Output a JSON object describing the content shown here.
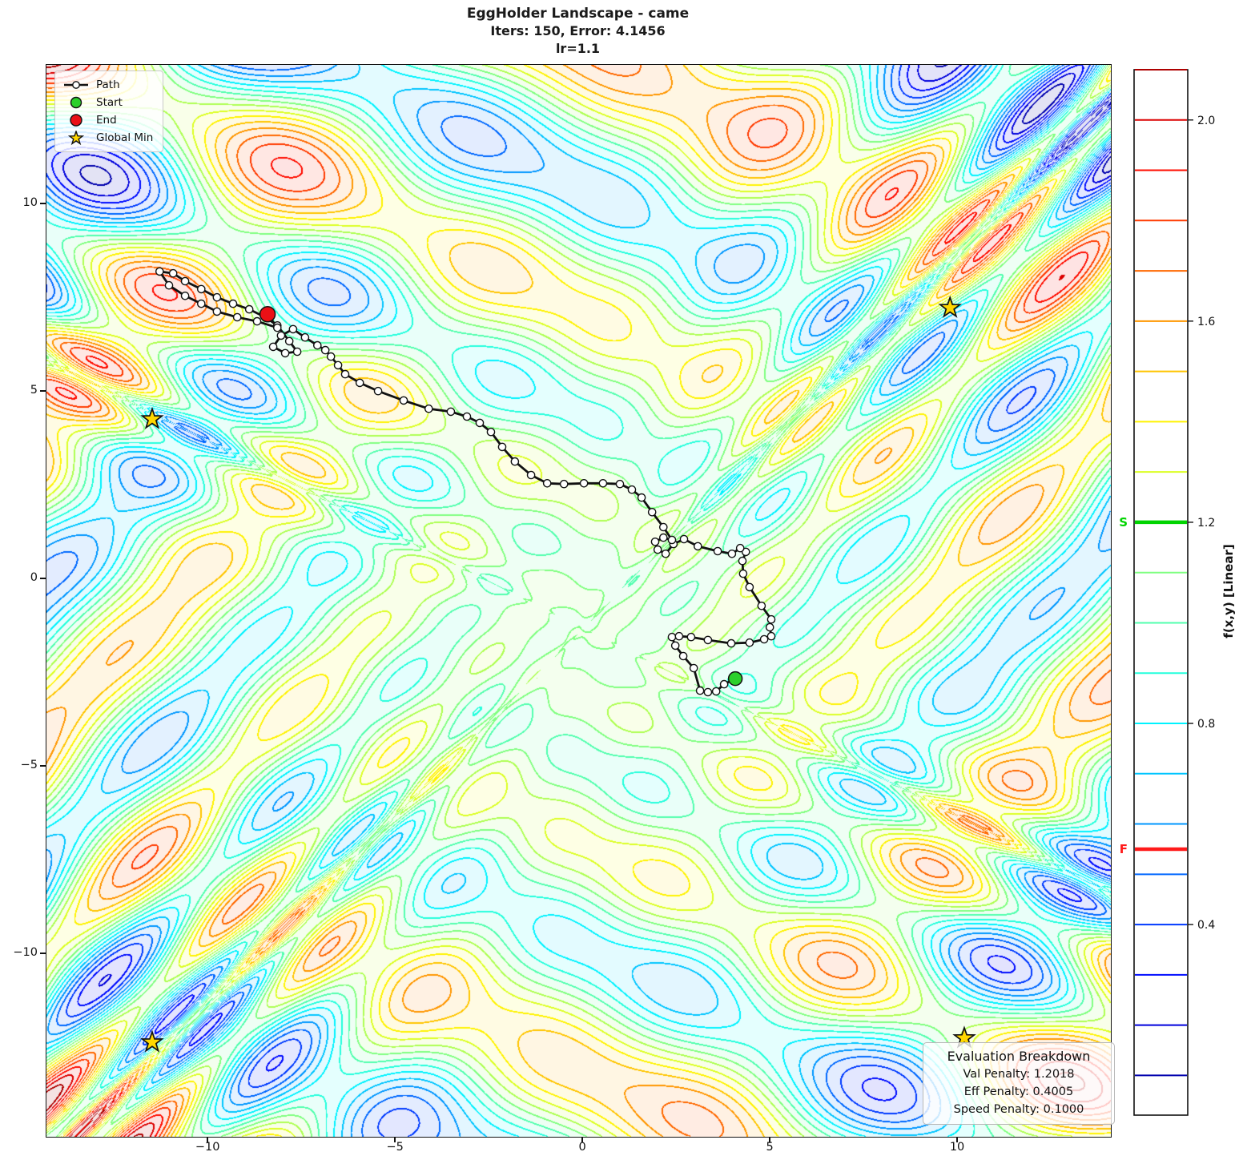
{
  "title": {
    "line1": "EggHolder Landscape - came",
    "line2": "Iters: 150, Error: 4.1456",
    "line3": "lr=1.1"
  },
  "legend": {
    "items": [
      "Path",
      "Start",
      "End",
      "Global Min"
    ]
  },
  "evaluation": {
    "title": "Evaluation Breakdown",
    "lines": [
      "Val Penalty: 1.2018",
      "Eff Penalty: 0.4005",
      "Speed Penalty: 0.1000"
    ]
  },
  "colors": {
    "start": "#2bd02b",
    "end": "#ea1016",
    "star": "#ffd700",
    "path": "#111111",
    "cbar_start_line": "#00d400",
    "cbar_end_line": "#ff1a1a"
  },
  "colorbar": {
    "label": "f(x,y) [Linear]",
    "ticks": [
      2.0,
      1.6,
      1.2,
      0.8,
      0.4
    ],
    "value_min": 0.021,
    "value_max": 2.1,
    "level_min": 0.1,
    "level_max": 2.1,
    "level_step": 0.1,
    "start_marker": {
      "label": "S",
      "value": 1.2
    },
    "end_marker": {
      "label": "F",
      "value": 0.55
    }
  },
  "chart_data": {
    "type": "contour",
    "function": "EggHolder (scaled)",
    "colormap": "jet",
    "n_levels": 21,
    "xlim": [
      -14.32,
      14.08
    ],
    "ylim": [
      -14.87,
      13.72
    ],
    "xticks": [
      -10,
      -5,
      0,
      5,
      10
    ],
    "xtick_labels": [
      "−10",
      "−5",
      "0",
      "5",
      "10"
    ],
    "yticks": [
      10,
      5,
      0,
      -5,
      -10
    ],
    "ytick_labels": [
      "10",
      "5",
      "0",
      "−5",
      "−10"
    ],
    "start": [
      4.06,
      -2.65
    ],
    "end": [
      -8.42,
      7.07
    ],
    "global_minima": [
      [
        -11.5,
        4.27
      ],
      [
        9.79,
        7.24
      ],
      [
        -11.5,
        -12.35
      ],
      [
        10.17,
        -12.24
      ]
    ],
    "path": [
      [
        4.06,
        -2.65
      ],
      [
        3.76,
        -2.8
      ],
      [
        3.55,
        -2.99
      ],
      [
        3.33,
        -3.01
      ],
      [
        3.12,
        -2.97
      ],
      [
        2.95,
        -2.37
      ],
      [
        2.67,
        -2.05
      ],
      [
        2.46,
        -1.77
      ],
      [
        2.37,
        -1.54
      ],
      [
        2.56,
        -1.52
      ],
      [
        2.88,
        -1.54
      ],
      [
        3.33,
        -1.62
      ],
      [
        3.95,
        -1.71
      ],
      [
        4.44,
        -1.69
      ],
      [
        4.83,
        -1.6
      ],
      [
        5.02,
        -1.52
      ],
      [
        4.98,
        -1.28
      ],
      [
        5.02,
        -1.07
      ],
      [
        4.76,
        -0.71
      ],
      [
        4.44,
        -0.21
      ],
      [
        4.27,
        0.15
      ],
      [
        4.25,
        0.49
      ],
      [
        4.34,
        0.73
      ],
      [
        4.19,
        0.83
      ],
      [
        3.97,
        0.68
      ],
      [
        3.59,
        0.75
      ],
      [
        3.06,
        0.88
      ],
      [
        2.69,
        1.07
      ],
      [
        2.41,
        0.94
      ],
      [
        2.2,
        0.68
      ],
      [
        1.99,
        0.79
      ],
      [
        1.92,
        1.0
      ],
      [
        2.14,
        1.11
      ],
      [
        2.37,
        1.05
      ],
      [
        2.14,
        1.39
      ],
      [
        1.84,
        1.79
      ],
      [
        1.56,
        2.18
      ],
      [
        1.3,
        2.39
      ],
      [
        0.98,
        2.54
      ],
      [
        0.53,
        2.56
      ],
      [
        0.02,
        2.56
      ],
      [
        -0.51,
        2.54
      ],
      [
        -0.96,
        2.56
      ],
      [
        -1.39,
        2.78
      ],
      [
        -1.82,
        3.14
      ],
      [
        -2.16,
        3.53
      ],
      [
        -2.46,
        3.93
      ],
      [
        -2.76,
        4.17
      ],
      [
        -3.1,
        4.34
      ],
      [
        -3.53,
        4.47
      ],
      [
        -4.12,
        4.55
      ],
      [
        -4.79,
        4.77
      ],
      [
        -5.47,
        5.02
      ],
      [
        -5.96,
        5.24
      ],
      [
        -6.35,
        5.47
      ],
      [
        -6.54,
        5.71
      ],
      [
        -6.73,
        5.94
      ],
      [
        -6.88,
        6.11
      ],
      [
        -7.09,
        6.24
      ],
      [
        -7.42,
        6.45
      ],
      [
        -7.74,
        6.67
      ],
      [
        -8.06,
        6.5
      ],
      [
        -8.27,
        6.2
      ],
      [
        -7.95,
        6.03
      ],
      [
        -7.63,
        6.07
      ],
      [
        -7.84,
        6.35
      ],
      [
        -8.16,
        6.77
      ],
      [
        -8.48,
        6.99
      ],
      [
        -8.91,
        7.2
      ],
      [
        -9.34,
        7.35
      ],
      [
        -9.77,
        7.52
      ],
      [
        -10.19,
        7.74
      ],
      [
        -10.62,
        7.95
      ],
      [
        -10.94,
        8.16
      ],
      [
        -11.3,
        8.21
      ],
      [
        -11.05,
        7.84
      ],
      [
        -10.62,
        7.56
      ],
      [
        -10.19,
        7.35
      ],
      [
        -9.77,
        7.14
      ],
      [
        -9.23,
        6.99
      ],
      [
        -8.7,
        6.88
      ],
      [
        -8.16,
        6.71
      ],
      [
        -8.42,
        7.07
      ]
    ]
  }
}
